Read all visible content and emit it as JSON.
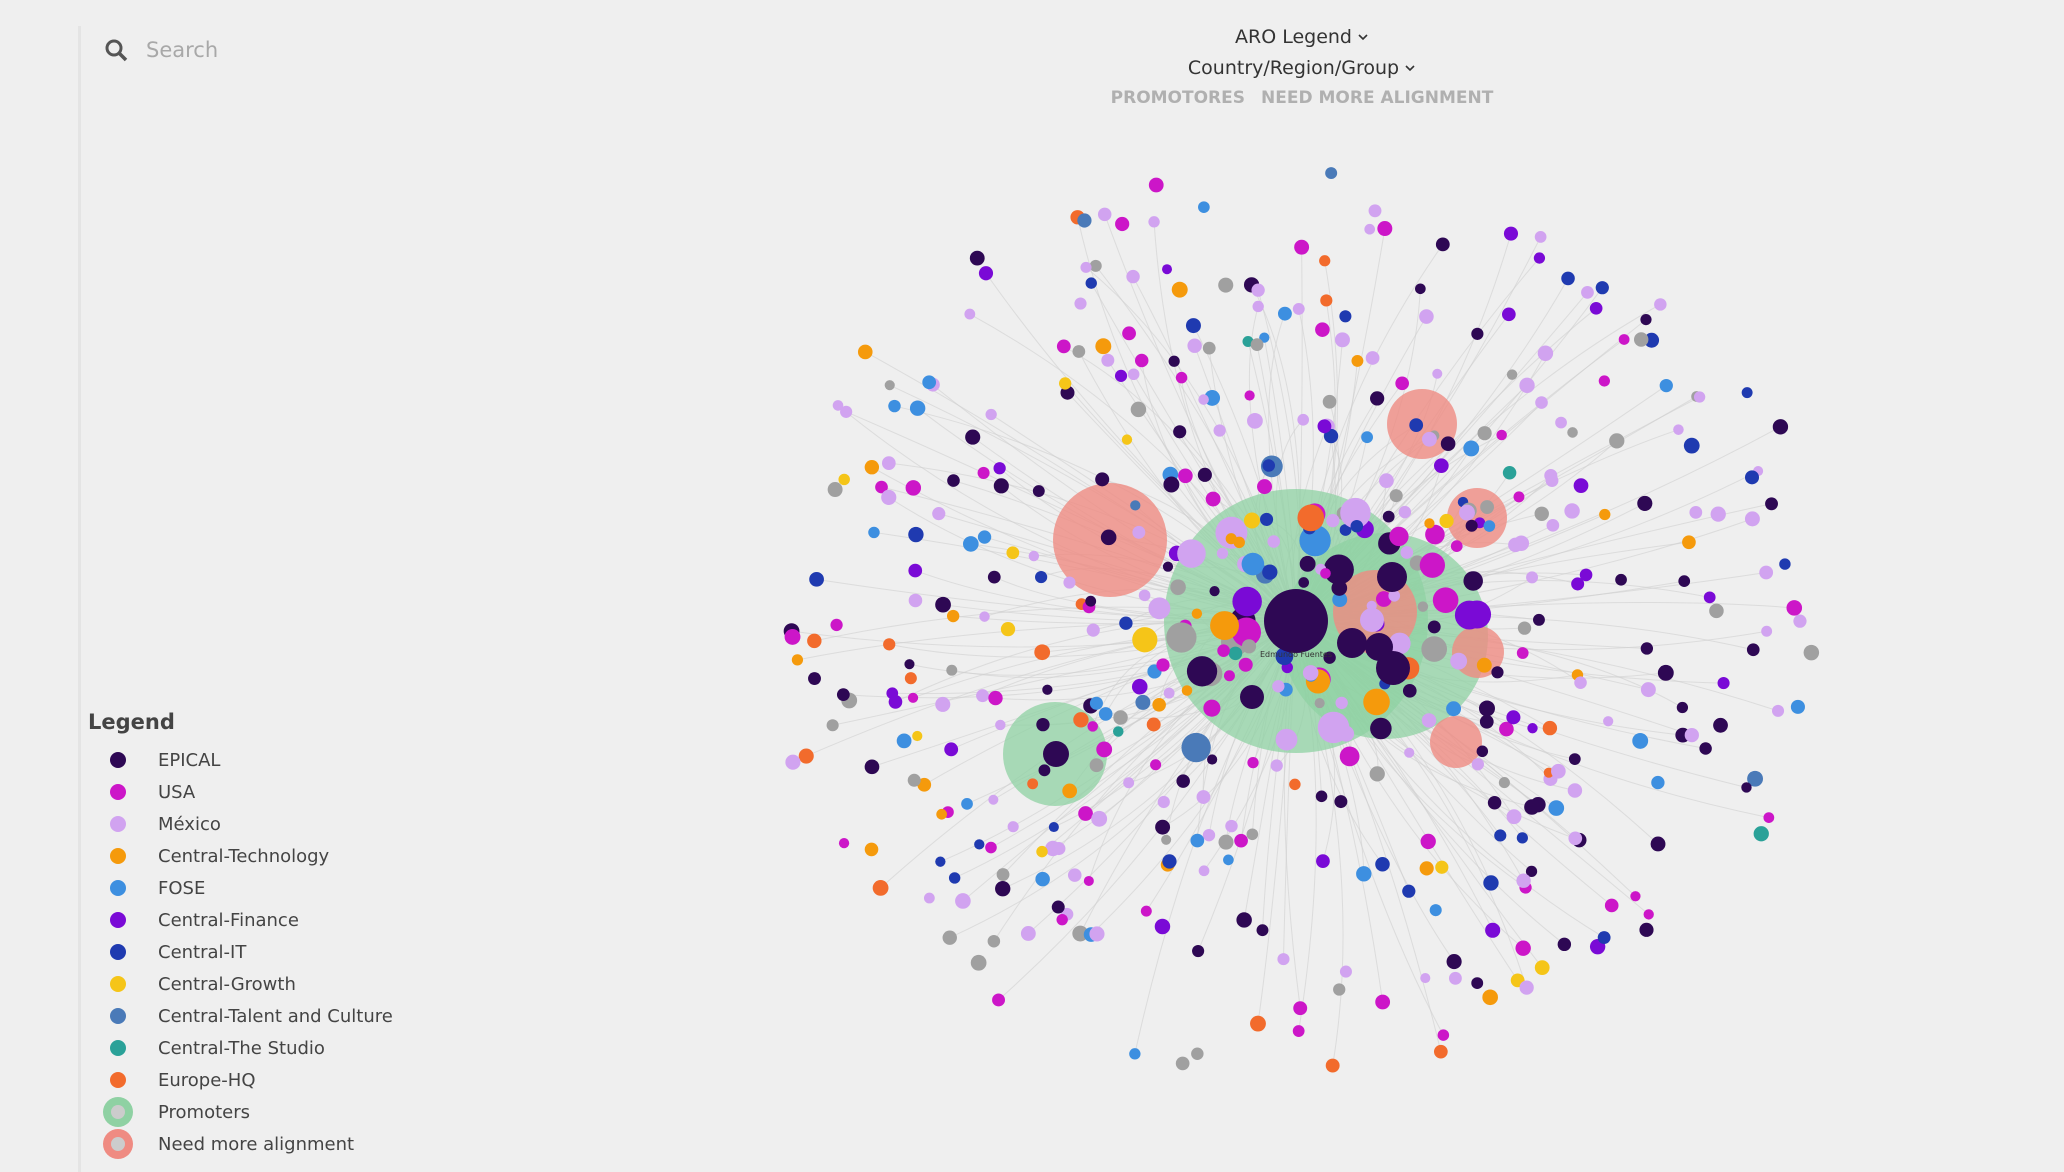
{
  "search": {
    "placeholder": "Search"
  },
  "header": {
    "menus": [
      "ARO Legend",
      "Country/Region/Group"
    ],
    "filters": [
      "PROMOTORES",
      "NEED MORE ALIGNMENT"
    ]
  },
  "graph": {
    "center_label": "Edmundo Fuentes"
  },
  "legend": {
    "title": "Legend",
    "items": [
      {
        "label": "EPICAL",
        "color": "#2e0854"
      },
      {
        "label": "USA",
        "color": "#cc16c8"
      },
      {
        "label": "México",
        "color": "#d1a3f0"
      },
      {
        "label": "Central-Technology",
        "color": "#f59a0c"
      },
      {
        "label": "FOSE",
        "color": "#3d8fe0"
      },
      {
        "label": "Central-Finance",
        "color": "#7a0ad6"
      },
      {
        "label": "Central-IT",
        "color": "#1f3ab0"
      },
      {
        "label": "Central-Growth",
        "color": "#f5c518"
      },
      {
        "label": "Central-Talent and Culture",
        "color": "#4a7ab8"
      },
      {
        "label": "Central-The Studio",
        "color": "#2aa198"
      },
      {
        "label": "Europe-HQ",
        "color": "#f26b2c"
      },
      {
        "label": "Promoters",
        "color": "#8fd1a3"
      },
      {
        "label": "Need more alignment",
        "color": "#ef8b82"
      }
    ]
  }
}
